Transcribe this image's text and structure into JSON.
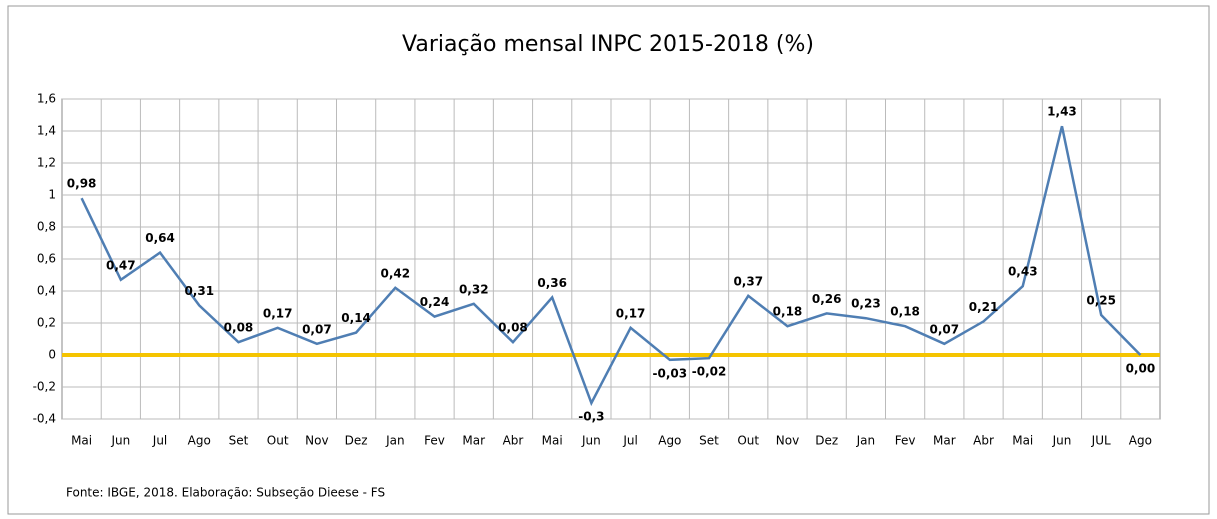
{
  "chart_data": {
    "type": "line",
    "title": "Variação mensal INPC 2015-2018 (%)",
    "categories": [
      "Mai",
      "Jun",
      "Jul",
      "Ago",
      "Set",
      "Out",
      "Nov",
      "Dez",
      "Jan",
      "Fev",
      "Mar",
      "Abr",
      "Mai",
      "Jun",
      "Jul",
      "Ago",
      "Set",
      "Out",
      "Nov",
      "Dez",
      "Jan",
      "Fev",
      "Mar",
      "Abr",
      "Mai",
      "Jun",
      "JUL",
      "Ago"
    ],
    "series": [
      {
        "name": "INPC",
        "color": "#4f7eb3",
        "values": [
          0.98,
          0.47,
          0.64,
          0.31,
          0.08,
          0.17,
          0.07,
          0.14,
          0.42,
          0.24,
          0.32,
          0.08,
          0.36,
          -0.3,
          0.17,
          -0.03,
          -0.02,
          0.37,
          0.18,
          0.26,
          0.23,
          0.18,
          0.07,
          0.21,
          0.43,
          1.43,
          0.25,
          0.0
        ]
      }
    ],
    "value_labels": [
      "0,98",
      "0,47",
      "0,64",
      "0,31",
      "0,08",
      "0,17",
      "0,07",
      "0,14",
      "0,42",
      "0,24",
      "0,32",
      "0,08",
      "0,36",
      "-0,3",
      "0,17",
      "-0,03",
      "-0,02",
      "0,37",
      "0,18",
      "0,26",
      "0,23",
      "0,18",
      "0,07",
      "0,21",
      "0,43",
      "1,43",
      "0,25",
      "0,00"
    ],
    "ylim": [
      -0.4,
      1.6
    ],
    "yticks": [
      {
        "value": -0.4,
        "label": "-0,4"
      },
      {
        "value": -0.2,
        "label": "-0,2"
      },
      0,
      {
        "value": 0.2,
        "label": "0,2"
      },
      {
        "value": 0.4,
        "label": "0,4"
      },
      {
        "value": 0.6,
        "label": "0,6"
      },
      {
        "value": 0.8,
        "label": "0,8"
      },
      1,
      {
        "value": 1.2,
        "label": "1,2"
      },
      {
        "value": 1.4,
        "label": "1,4"
      },
      {
        "value": 1.6,
        "label": "1,6"
      }
    ],
    "grid": true,
    "source": "Fonte: IBGE,  2018. Elaboração: Subseção  Dieese - FS"
  }
}
